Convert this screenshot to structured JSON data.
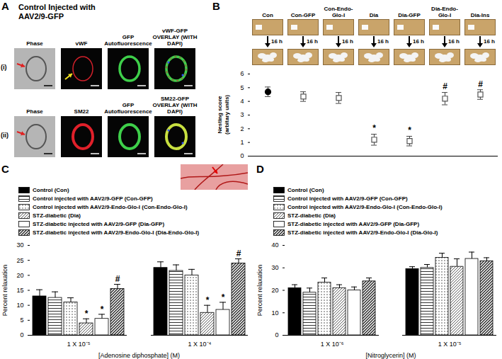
{
  "panel_a": {
    "label": "A",
    "title": "Control Injected with AAV2/9-GFP",
    "rows": [
      {
        "label": "(i)",
        "panels": [
          "Phase",
          "vWF",
          "GFP Autofluorescence",
          "vWF-GFP OVERLAY (WITH DAPI)"
        ]
      },
      {
        "label": "(ii)",
        "panels": [
          "Phase",
          "SM22",
          "GFP Autofluorescence",
          "SM22-GFP OVERLAY (WITH DAPI)"
        ]
      }
    ]
  },
  "panel_b_photos": {
    "interval_label": "16 h"
  },
  "chart_data": [
    {
      "type": "scatter",
      "title": "B",
      "categories": [
        "Con",
        "Con-GFP",
        "Con-Endo-Glo-I",
        "Dia",
        "Dia-GFP",
        "Dia-Endo-Glo-I",
        "Dia-Ins"
      ],
      "ylabel": "Nesting score\n(arbitary units)",
      "ylim": [
        0,
        6
      ],
      "yticks": [
        0,
        1,
        2,
        3,
        4,
        5,
        6
      ],
      "tick_labels": "y",
      "series": [
        {
          "color": "#000000",
          "marker": "circle",
          "values": [
            4.7,
            null,
            null,
            null,
            null,
            null,
            null
          ],
          "errors": [
            0.35,
            null,
            null,
            null,
            null,
            null,
            null
          ]
        },
        {
          "color": "#ffffff",
          "marker": "square",
          "values": [
            null,
            4.35,
            4.25,
            1.2,
            1.1,
            4.2,
            4.5
          ],
          "errors": [
            null,
            0.35,
            0.4,
            0.4,
            0.35,
            0.45,
            0.35
          ]
        }
      ],
      "annotations": [
        {
          "text": "*",
          "category": "Dia"
        },
        {
          "text": "*",
          "category": "Dia-GFP"
        },
        {
          "text": "#",
          "category": "Dia-Endo-Glo-I"
        },
        {
          "text": "#",
          "category": "Dia-Ins"
        }
      ]
    },
    {
      "type": "bar",
      "title": "C",
      "categories": [
        "1 X 10⁻⁵",
        "1 X 10⁻⁴"
      ],
      "xlabel": "[Adenosine diphosphate] (M)",
      "ylabel": "Percent relaxation",
      "ylim": [
        0,
        30
      ],
      "yticks": [
        0,
        5,
        10,
        15,
        20,
        25,
        30
      ],
      "legend": "top-left",
      "series": [
        {
          "name": "Control (Con)",
          "color": "#000000",
          "values": [
            13,
            22.5
          ],
          "errors": [
            2.2,
            2
          ]
        },
        {
          "name": "Control injected with AAV2/9-GFP (Con-GFP)",
          "color": "#333333",
          "values": [
            12.5,
            21.5
          ],
          "errors": [
            2,
            2
          ]
        },
        {
          "name": "Control injected with AAV2/9-Endo-Glo-I (Con-Endo-Glo-I)",
          "color": "#444444",
          "values": [
            11,
            20
          ],
          "errors": [
            1.5,
            2
          ]
        },
        {
          "name": "STZ-diabetic (Dia)",
          "color": "#333333",
          "values": [
            4,
            7.5
          ],
          "errors": [
            1.5,
            2.5
          ]
        },
        {
          "name": "STZ-diabetic injected with AAV2/9-GFP (Dia-GFP)",
          "color": "#ffffff",
          "values": [
            5.5,
            8.5
          ],
          "errors": [
            1.5,
            2.5
          ]
        },
        {
          "name": "STZ-diabetic injected with AAV2/9-Endo-Glo-I (Dia-Endo-Glo-I)",
          "color": "#222222",
          "values": [
            15.5,
            24
          ],
          "errors": [
            1.5,
            1.5
          ]
        }
      ],
      "annotations": [
        {
          "text": "*",
          "series": "STZ-diabetic (Dia)",
          "category": "1 X 10⁻⁵"
        },
        {
          "text": "*",
          "series": "STZ-diabetic injected with AAV2/9-GFP (Dia-GFP)",
          "category": "1 X 10⁻⁵"
        },
        {
          "text": "#",
          "series": "STZ-diabetic injected with AAV2/9-Endo-Glo-I (Dia-Endo-Glo-I)",
          "category": "1 X 10⁻⁵"
        },
        {
          "text": "*",
          "series": "STZ-diabetic (Dia)",
          "category": "1 X 10⁻⁴"
        },
        {
          "text": "*",
          "series": "STZ-diabetic injected with AAV2/9-GFP (Dia-GFP)",
          "category": "1 X 10⁻⁴"
        },
        {
          "text": "#",
          "series": "STZ-diabetic injected with AAV2/9-Endo-Glo-I (Dia-Endo-Glo-I)",
          "category": "1 X 10⁻⁴"
        }
      ]
    },
    {
      "type": "bar",
      "title": "D",
      "categories": [
        "1 X 10⁻⁶",
        "1 X 10⁻⁵"
      ],
      "xlabel": "[Nitroglycerin] (M)",
      "ylabel": "Percent relaxation",
      "ylim": [
        0,
        40
      ],
      "yticks": [
        0,
        10,
        20,
        30,
        40
      ],
      "legend": "top-left",
      "series": [
        {
          "name": "Control (Con)",
          "color": "#000000",
          "values": [
            21,
            29.5
          ],
          "errors": [
            1.5,
            1
          ]
        },
        {
          "name": "Control injected with AAV2/9-GFP (Con-GFP)",
          "color": "#333333",
          "values": [
            19,
            30
          ],
          "errors": [
            2,
            1.5
          ]
        },
        {
          "name": "Control injected with AAV2/9-Endo-Glo-I (Con-Endo-Glo-I)",
          "color": "#444444",
          "values": [
            23.5,
            34.5
          ],
          "errors": [
            2,
            2
          ]
        },
        {
          "name": "STZ-diabetic (Dia)",
          "color": "#333333",
          "values": [
            21,
            30.5
          ],
          "errors": [
            1.5,
            3.5
          ]
        },
        {
          "name": "STZ-diabetic injected with AAV2/9-GFP (Dia-GFP)",
          "color": "#ffffff",
          "values": [
            20,
            34
          ],
          "errors": [
            1.5,
            3
          ]
        },
        {
          "name": "STZ-diabetic injected with AAV2/9-Endo-Glo-I (Dia-Glo-I)",
          "color": "#222222",
          "values": [
            24,
            33
          ],
          "errors": [
            1.5,
            1.5
          ]
        }
      ]
    }
  ]
}
